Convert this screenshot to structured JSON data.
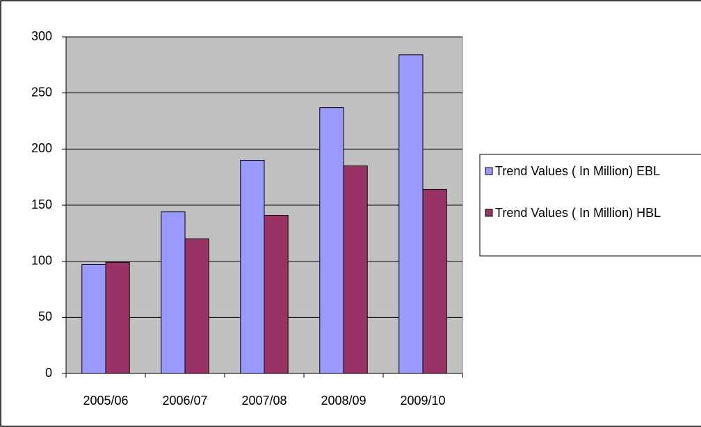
{
  "chart_data": {
    "type": "bar",
    "categories": [
      "2005/06",
      "2006/07",
      "2007/08",
      "2008/09",
      "2009/10"
    ],
    "series": [
      {
        "name": "Trend Values ( In Million) EBL",
        "color": "#9999ff",
        "values": [
          97,
          144,
          190,
          237,
          284
        ]
      },
      {
        "name": "Trend Values ( In Million) HBL",
        "color": "#993366",
        "values": [
          99,
          120,
          141,
          185,
          164
        ]
      }
    ],
    "ylim": [
      0,
      300
    ],
    "yticks": [
      0,
      50,
      100,
      150,
      200,
      250,
      300
    ],
    "grid": true,
    "legend": "right"
  }
}
